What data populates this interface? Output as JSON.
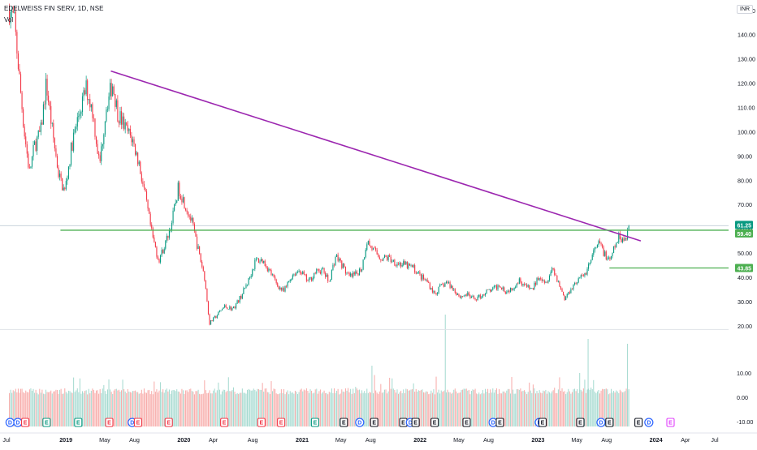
{
  "header": {
    "symbol_title": "EDELWEISS FIN SERV, 1D, NSE",
    "volume_label": "Vol",
    "currency": "INR"
  },
  "chart_data": {
    "type": "candlestick",
    "symbol": "EDELWEISS",
    "exchange": "NSE",
    "interval": "1D",
    "currency": "INR",
    "x_tick_labels": [
      {
        "label": "Jul",
        "date": "2018-07-01",
        "bold": false
      },
      {
        "label": "2019",
        "date": "2019-01-01",
        "bold": true
      },
      {
        "label": "May",
        "date": "2019-05-01",
        "bold": false
      },
      {
        "label": "Aug",
        "date": "2019-08-01",
        "bold": false
      },
      {
        "label": "2020",
        "date": "2020-01-01",
        "bold": true
      },
      {
        "label": "Apr",
        "date": "2020-04-01",
        "bold": false
      },
      {
        "label": "Aug",
        "date": "2020-08-01",
        "bold": false
      },
      {
        "label": "2021",
        "date": "2021-01-01",
        "bold": true
      },
      {
        "label": "May",
        "date": "2021-05-01",
        "bold": false
      },
      {
        "label": "Aug",
        "date": "2021-08-01",
        "bold": false
      },
      {
        "label": "2022",
        "date": "2022-01-01",
        "bold": true
      },
      {
        "label": "May",
        "date": "2022-05-01",
        "bold": false
      },
      {
        "label": "Aug",
        "date": "2022-08-01",
        "bold": false
      },
      {
        "label": "2023",
        "date": "2023-01-01",
        "bold": true
      },
      {
        "label": "May",
        "date": "2023-05-01",
        "bold": false
      },
      {
        "label": "Aug",
        "date": "2023-08-01",
        "bold": false
      },
      {
        "label": "2024",
        "date": "2024-01-01",
        "bold": true
      },
      {
        "label": "Apr",
        "date": "2024-04-01",
        "bold": false
      },
      {
        "label": "Jul",
        "date": "2024-07-01",
        "bold": false
      }
    ],
    "price_axis_ticks": [
      "150.00",
      "140.00",
      "130.00",
      "120.00",
      "110.00",
      "100.00",
      "90.00",
      "80.00",
      "70.00",
      "60.00",
      "50.00",
      "40.00",
      "30.00",
      "20.00"
    ],
    "volume_axis_ticks": [
      "10.00",
      "0.00",
      "-10.00"
    ],
    "price_range": [
      14,
      157
    ],
    "price_labels": [
      {
        "value": 61.25,
        "text": "61.25",
        "color": "#089981"
      },
      {
        "value": 59.4,
        "text": "59.40",
        "color": "#4caf50"
      },
      {
        "value": 43.85,
        "text": "43.85",
        "color": "#4caf50"
      }
    ],
    "price_series": [
      {
        "date": "2018-07-10",
        "close": 150
      },
      {
        "date": "2018-07-25",
        "close": 146
      },
      {
        "date": "2018-08-10",
        "close": 122
      },
      {
        "date": "2018-08-25",
        "close": 100
      },
      {
        "date": "2018-09-10",
        "close": 83
      },
      {
        "date": "2018-09-25",
        "close": 94
      },
      {
        "date": "2018-10-15",
        "close": 100
      },
      {
        "date": "2018-11-01",
        "close": 120
      },
      {
        "date": "2018-11-20",
        "close": 100
      },
      {
        "date": "2018-12-10",
        "close": 82
      },
      {
        "date": "2018-12-28",
        "close": 75
      },
      {
        "date": "2019-01-20",
        "close": 95
      },
      {
        "date": "2019-02-10",
        "close": 107
      },
      {
        "date": "2019-03-05",
        "close": 118
      },
      {
        "date": "2019-03-25",
        "close": 108
      },
      {
        "date": "2019-04-15",
        "close": 86
      },
      {
        "date": "2019-05-05",
        "close": 110
      },
      {
        "date": "2019-05-25",
        "close": 120
      },
      {
        "date": "2019-06-10",
        "close": 108
      },
      {
        "date": "2019-07-05",
        "close": 101
      },
      {
        "date": "2019-07-25",
        "close": 97
      },
      {
        "date": "2019-08-15",
        "close": 87
      },
      {
        "date": "2019-09-05",
        "close": 72
      },
      {
        "date": "2019-09-25",
        "close": 57
      },
      {
        "date": "2019-10-15",
        "close": 47
      },
      {
        "date": "2019-11-05",
        "close": 54
      },
      {
        "date": "2019-11-25",
        "close": 63
      },
      {
        "date": "2019-12-15",
        "close": 77
      },
      {
        "date": "2020-01-05",
        "close": 70
      },
      {
        "date": "2020-01-25",
        "close": 63
      },
      {
        "date": "2020-02-15",
        "close": 51
      },
      {
        "date": "2020-03-05",
        "close": 40
      },
      {
        "date": "2020-03-20",
        "close": 21
      },
      {
        "date": "2020-04-10",
        "close": 24
      },
      {
        "date": "2020-05-05",
        "close": 28
      },
      {
        "date": "2020-06-01",
        "close": 27
      },
      {
        "date": "2020-06-25",
        "close": 32
      },
      {
        "date": "2020-07-20",
        "close": 39
      },
      {
        "date": "2020-08-10",
        "close": 47
      },
      {
        "date": "2020-09-01",
        "close": 47
      },
      {
        "date": "2020-09-25",
        "close": 42
      },
      {
        "date": "2020-10-15",
        "close": 37
      },
      {
        "date": "2020-11-05",
        "close": 34
      },
      {
        "date": "2020-12-01",
        "close": 41
      },
      {
        "date": "2020-12-25",
        "close": 43
      },
      {
        "date": "2021-01-20",
        "close": 38
      },
      {
        "date": "2021-02-10",
        "close": 42
      },
      {
        "date": "2021-03-05",
        "close": 43
      },
      {
        "date": "2021-03-25",
        "close": 38
      },
      {
        "date": "2021-04-15",
        "close": 49
      },
      {
        "date": "2021-05-05",
        "close": 45
      },
      {
        "date": "2021-05-25",
        "close": 40
      },
      {
        "date": "2021-06-15",
        "close": 41
      },
      {
        "date": "2021-07-05",
        "close": 44
      },
      {
        "date": "2021-07-20",
        "close": 55
      },
      {
        "date": "2021-08-10",
        "close": 51
      },
      {
        "date": "2021-09-01",
        "close": 48
      },
      {
        "date": "2021-09-25",
        "close": 48
      },
      {
        "date": "2021-10-20",
        "close": 46
      },
      {
        "date": "2021-11-15",
        "close": 45
      },
      {
        "date": "2021-12-10",
        "close": 44
      },
      {
        "date": "2022-01-05",
        "close": 40
      },
      {
        "date": "2022-01-25",
        "close": 38
      },
      {
        "date": "2022-02-15",
        "close": 33
      },
      {
        "date": "2022-03-05",
        "close": 36
      },
      {
        "date": "2022-03-25",
        "close": 38
      },
      {
        "date": "2022-04-15",
        "close": 35
      },
      {
        "date": "2022-05-05",
        "close": 32
      },
      {
        "date": "2022-05-25",
        "close": 33
      },
      {
        "date": "2022-06-15",
        "close": 31
      },
      {
        "date": "2022-07-05",
        "close": 32
      },
      {
        "date": "2022-07-25",
        "close": 34
      },
      {
        "date": "2022-08-15",
        "close": 35
      },
      {
        "date": "2022-09-05",
        "close": 37
      },
      {
        "date": "2022-09-25",
        "close": 34
      },
      {
        "date": "2022-10-15",
        "close": 36
      },
      {
        "date": "2022-11-05",
        "close": 39
      },
      {
        "date": "2022-11-25",
        "close": 36
      },
      {
        "date": "2022-12-15",
        "close": 35
      },
      {
        "date": "2023-01-05",
        "close": 41
      },
      {
        "date": "2023-01-25",
        "close": 38
      },
      {
        "date": "2023-02-15",
        "close": 44
      },
      {
        "date": "2023-03-05",
        "close": 38
      },
      {
        "date": "2023-03-25",
        "close": 31
      },
      {
        "date": "2023-04-15",
        "close": 36
      },
      {
        "date": "2023-05-05",
        "close": 39
      },
      {
        "date": "2023-05-25",
        "close": 41
      },
      {
        "date": "2023-06-10",
        "close": 46
      },
      {
        "date": "2023-06-25",
        "close": 51
      },
      {
        "date": "2023-07-10",
        "close": 54
      },
      {
        "date": "2023-07-25",
        "close": 50
      },
      {
        "date": "2023-08-10",
        "close": 46
      },
      {
        "date": "2023-08-25",
        "close": 52
      },
      {
        "date": "2023-09-10",
        "close": 57
      },
      {
        "date": "2023-09-25",
        "close": 55
      },
      {
        "date": "2023-10-10",
        "close": 61.25
      }
    ],
    "annotations": [
      {
        "type": "trendline",
        "color": "#9c27b0",
        "start": {
          "date": "2019-05-20",
          "price": 125
        },
        "end": {
          "date": "2023-11-15",
          "price": 55
        }
      },
      {
        "type": "horizontal-segment",
        "color": "#4caf50",
        "price": 59.4,
        "from": "2018-12-15"
      },
      {
        "type": "horizontal-segment",
        "color": "#4caf50",
        "price": 43.85,
        "from": "2023-08-10"
      },
      {
        "type": "horizontal-line",
        "color": "#c8d2dc",
        "price": 61.25
      },
      {
        "type": "horizontal-line",
        "color": "#dfe3e8",
        "price": 18.5
      }
    ],
    "event_markers": [
      {
        "letter": "D",
        "color": "#2962ff",
        "date": "2018-07-12"
      },
      {
        "letter": "D",
        "color": "#2962ff",
        "date": "2018-08-05"
      },
      {
        "letter": "E",
        "color": "#f23645",
        "date": "2018-08-28"
      },
      {
        "letter": "E",
        "color": "#089981",
        "date": "2018-11-02"
      },
      {
        "letter": "E",
        "color": "#089981",
        "date": "2019-02-08"
      },
      {
        "letter": "E",
        "color": "#f23645",
        "date": "2019-05-15"
      },
      {
        "letter": "D",
        "color": "#2962ff",
        "date": "2019-07-25"
      },
      {
        "letter": "E",
        "color": "#f23645",
        "date": "2019-08-12"
      },
      {
        "letter": "E",
        "color": "#f23645",
        "date": "2019-11-15"
      },
      {
        "letter": "E",
        "color": "#f23645",
        "date": "2020-05-05"
      },
      {
        "letter": "E",
        "color": "#f23645",
        "date": "2020-08-28"
      },
      {
        "letter": "E",
        "color": "#f23645",
        "date": "2020-10-28"
      },
      {
        "letter": "E",
        "color": "#089981",
        "date": "2021-02-10"
      },
      {
        "letter": "E",
        "color": "#131722",
        "date": "2021-05-10"
      },
      {
        "letter": "D",
        "color": "#2962ff",
        "date": "2021-06-28"
      },
      {
        "letter": "E",
        "color": "#131722",
        "date": "2021-08-12"
      },
      {
        "letter": "E",
        "color": "#131722",
        "date": "2021-11-10"
      },
      {
        "letter": "D",
        "color": "#2962ff",
        "date": "2021-12-02"
      },
      {
        "letter": "E",
        "color": "#131722",
        "date": "2021-12-18"
      },
      {
        "letter": "E",
        "color": "#131722",
        "date": "2022-02-15"
      },
      {
        "letter": "E",
        "color": "#131722",
        "date": "2022-05-25"
      },
      {
        "letter": "D",
        "color": "#2962ff",
        "date": "2022-08-15"
      },
      {
        "letter": "E",
        "color": "#131722",
        "date": "2022-09-05"
      },
      {
        "letter": "D",
        "color": "#2962ff",
        "date": "2023-01-05"
      },
      {
        "letter": "E",
        "color": "#131722",
        "date": "2023-01-15"
      },
      {
        "letter": "E",
        "color": "#131722",
        "date": "2023-05-12"
      },
      {
        "letter": "D",
        "color": "#2962ff",
        "date": "2023-07-15"
      },
      {
        "letter": "E",
        "color": "#131722",
        "date": "2023-08-10"
      },
      {
        "letter": "E",
        "color": "#131722",
        "date": "2023-11-08"
      },
      {
        "letter": "D",
        "color": "#2962ff",
        "date": "2023-12-10"
      },
      {
        "letter": "E",
        "color": "#e040fb",
        "date": "2024-02-15"
      }
    ],
    "grid": false,
    "colors": {
      "up": "#089981",
      "down": "#f23645",
      "up_volume": "#a3d9cf",
      "down_volume": "#f7a9a7"
    }
  }
}
